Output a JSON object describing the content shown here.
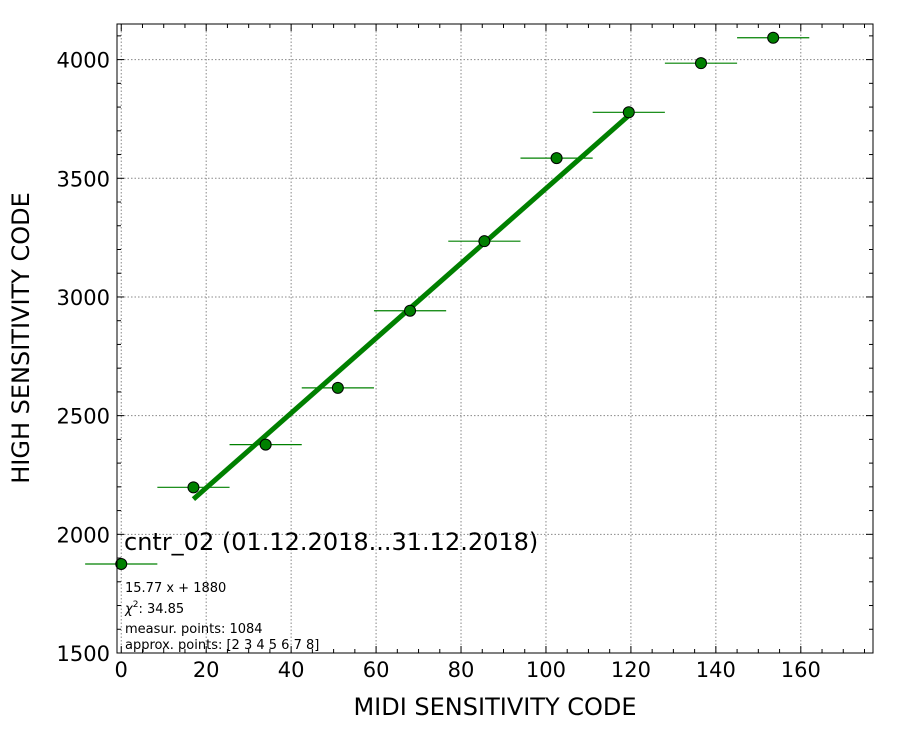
{
  "chart_data": {
    "type": "scatter",
    "xlabel": "MIDI SENSITIVITY CODE",
    "ylabel": "HIGH SENSITIVITY CODE",
    "xlim": [
      -1,
      177
    ],
    "ylim": [
      1500,
      4150
    ],
    "x_ticks": [
      0,
      20,
      40,
      60,
      80,
      100,
      120,
      140,
      160
    ],
    "y_ticks": [
      1500,
      2000,
      2500,
      3000,
      3500,
      4000
    ],
    "grid": true,
    "series": [
      {
        "color": "#008000",
        "points": [
          {
            "x": 0,
            "y": 1875,
            "xerr": 8.5
          },
          {
            "x": 17,
            "y": 2198,
            "xerr": 8.5
          },
          {
            "x": 34,
            "y": 2378,
            "xerr": 8.5
          },
          {
            "x": 51,
            "y": 2617,
            "xerr": 8.5
          },
          {
            "x": 68,
            "y": 2942,
            "xerr": 8.5
          },
          {
            "x": 85.5,
            "y": 3235,
            "xerr": 8.5
          },
          {
            "x": 102.5,
            "y": 3585,
            "xerr": 8.5
          },
          {
            "x": 119.5,
            "y": 3778,
            "xerr": 8.5
          },
          {
            "x": 136.5,
            "y": 3985,
            "xerr": 8.5
          },
          {
            "x": 153.5,
            "y": 4092,
            "xerr": 8.5
          }
        ]
      }
    ],
    "fit": {
      "slope": 15.77,
      "intercept": 1880,
      "x_range": [
        17,
        119.5
      ],
      "color": "#008000"
    },
    "title": "cntr_02 (01.12.2018...31.12.2018)",
    "annotations": {
      "equation": "15.77 x + 1880",
      "chi2_prefix": "χ",
      "chi2_power": "2",
      "chi2_value": ": 34.85",
      "measur_points": "measur. points: 1084",
      "approx_points": "approx. points: [2 3 4 5 6 7 8]"
    }
  }
}
